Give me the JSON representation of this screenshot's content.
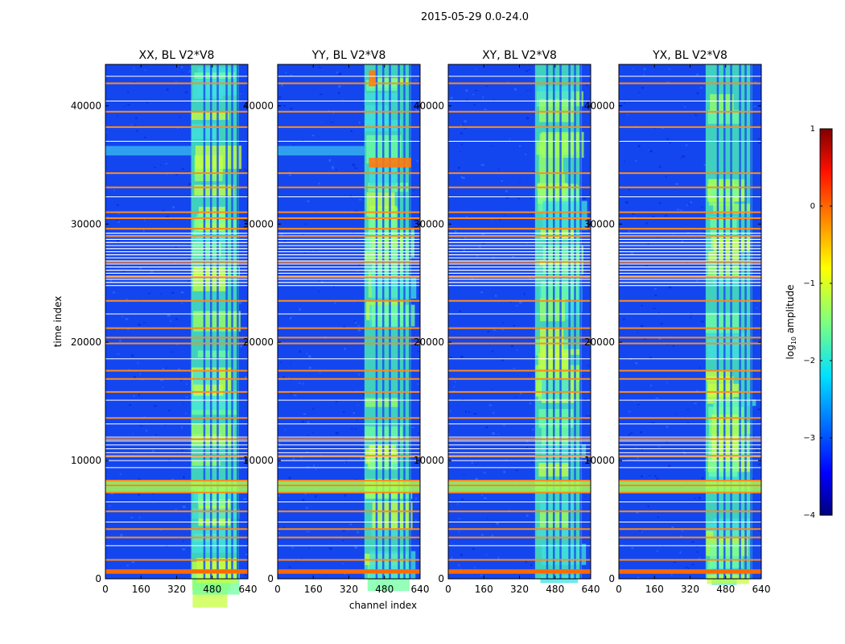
{
  "figure": {
    "suptitle": "2015-05-29 0.0-24.0"
  },
  "chart_data": [
    {
      "type": "heatmap",
      "title": "XX, BL V2*V8",
      "xlabel": "",
      "ylabel": "time index",
      "xticks": [
        0,
        160,
        320,
        480,
        640
      ],
      "yticks": [
        0,
        10000,
        20000,
        30000,
        40000
      ],
      "xlim": [
        0,
        640
      ],
      "ylim": [
        0,
        43500
      ],
      "bright_band_channels": [
        385,
        600
      ],
      "flagged_rows": [
        500,
        700,
        1600,
        3500,
        4200,
        5700,
        7300,
        7900,
        8300,
        10400,
        11800,
        13600,
        15800,
        16900,
        17600,
        19900,
        20400,
        21200,
        23500,
        25500,
        26800,
        29000,
        29600,
        30500,
        31000,
        33100,
        34300,
        38200,
        39500,
        41900
      ]
    },
    {
      "type": "heatmap",
      "title": "YY, BL V2*V8",
      "xlabel": "channel index",
      "ylabel": "",
      "xticks": [
        0,
        160,
        320,
        480,
        640
      ],
      "yticks": [
        0,
        10000,
        20000,
        30000,
        40000
      ],
      "xlim": [
        0,
        640
      ],
      "ylim": [
        0,
        43500
      ],
      "bright_band_channels": [
        390,
        600
      ],
      "flagged_rows": [
        500,
        700,
        1600,
        3500,
        4200,
        5700,
        7300,
        7900,
        8300,
        10400,
        11800,
        13600,
        15800,
        16900,
        17600,
        19900,
        20400,
        21200,
        23500,
        25500,
        26800,
        29000,
        29600,
        30500,
        31000,
        33100,
        34300,
        38200,
        39500,
        41900
      ]
    },
    {
      "type": "heatmap",
      "title": "XY, BL V2*V8",
      "xlabel": "",
      "ylabel": "",
      "xticks": [
        0,
        160,
        320,
        480,
        640
      ],
      "yticks": [
        0,
        10000,
        20000,
        30000,
        40000
      ],
      "xlim": [
        0,
        640
      ],
      "ylim": [
        0,
        43500
      ],
      "bright_band_channels": [
        390,
        600
      ],
      "flagged_rows": [
        500,
        700,
        1600,
        3500,
        4200,
        5700,
        7300,
        7900,
        8300,
        10400,
        11800,
        13600,
        15800,
        16900,
        17600,
        19900,
        20400,
        21200,
        23500,
        25500,
        26800,
        29000,
        29600,
        30500,
        31000,
        33100,
        34300,
        38200,
        39500,
        41900
      ]
    },
    {
      "type": "heatmap",
      "title": "YX, BL V2*V8",
      "xlabel": "",
      "ylabel": "",
      "xticks": [
        0,
        160,
        320,
        480,
        640
      ],
      "yticks": [
        0,
        10000,
        20000,
        30000,
        40000
      ],
      "xlim": [
        0,
        640
      ],
      "ylim": [
        0,
        43500
      ],
      "bright_band_channels": [
        390,
        600
      ],
      "flagged_rows": [
        500,
        700,
        1600,
        3500,
        4200,
        5700,
        7300,
        7900,
        8300,
        10400,
        11800,
        13600,
        15800,
        16900,
        17600,
        19900,
        20400,
        21200,
        23500,
        25500,
        26800,
        29000,
        29600,
        30500,
        31000,
        33100,
        34300,
        38200,
        39500,
        41900
      ]
    }
  ],
  "colorbar": {
    "label_main": "log",
    "label_sub": "10",
    "label_rest": " amplitude",
    "ticks": [
      {
        "value": 1,
        "label": "1"
      },
      {
        "value": 0,
        "label": "0"
      },
      {
        "value": -1,
        "label": "−1"
      },
      {
        "value": -2,
        "label": "−2"
      },
      {
        "value": -3,
        "label": "−3"
      },
      {
        "value": -4,
        "label": "−4"
      }
    ],
    "range": [
      -4,
      1
    ],
    "colormap": "jet"
  }
}
